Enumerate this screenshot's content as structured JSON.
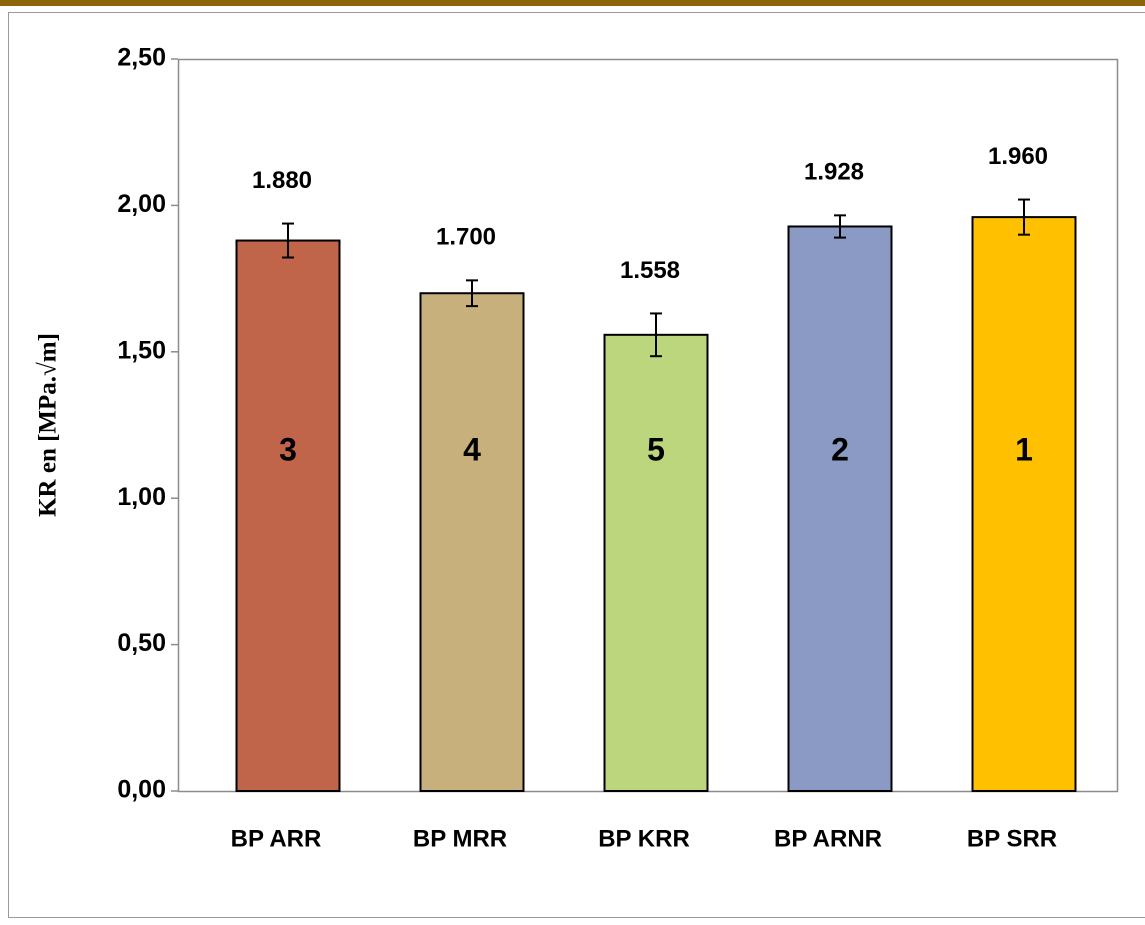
{
  "chart_data": {
    "type": "bar",
    "y_label": "KR en [MPa.√m]",
    "categories": [
      "BP ARR",
      "BP MRR",
      "BP KRR",
      "BP ARNR",
      "BP SRR"
    ],
    "values": [
      1.88,
      1.7,
      1.558,
      1.928,
      1.96
    ],
    "value_labels": [
      "1.880",
      "1.700",
      "1.558",
      "1.928",
      "1.960"
    ],
    "errors": [
      0.058,
      0.044,
      0.073,
      0.038,
      0.06
    ],
    "ranks": [
      3,
      4,
      5,
      2,
      1
    ],
    "colors": [
      "#c0654a",
      "#c8b07c",
      "#bcd67e",
      "#8a9ac4",
      "#ffc000"
    ],
    "ylim": [
      0,
      2.5
    ],
    "yticks": [
      {
        "value": 0,
        "label": "0,00"
      },
      {
        "value": 0.5,
        "label": "0,50"
      },
      {
        "value": 1,
        "label": "1,00"
      },
      {
        "value": 1.5,
        "label": "1,50"
      },
      {
        "value": 2,
        "label": "2,00"
      },
      {
        "value": 2.5,
        "label": "2,50"
      }
    ]
  }
}
